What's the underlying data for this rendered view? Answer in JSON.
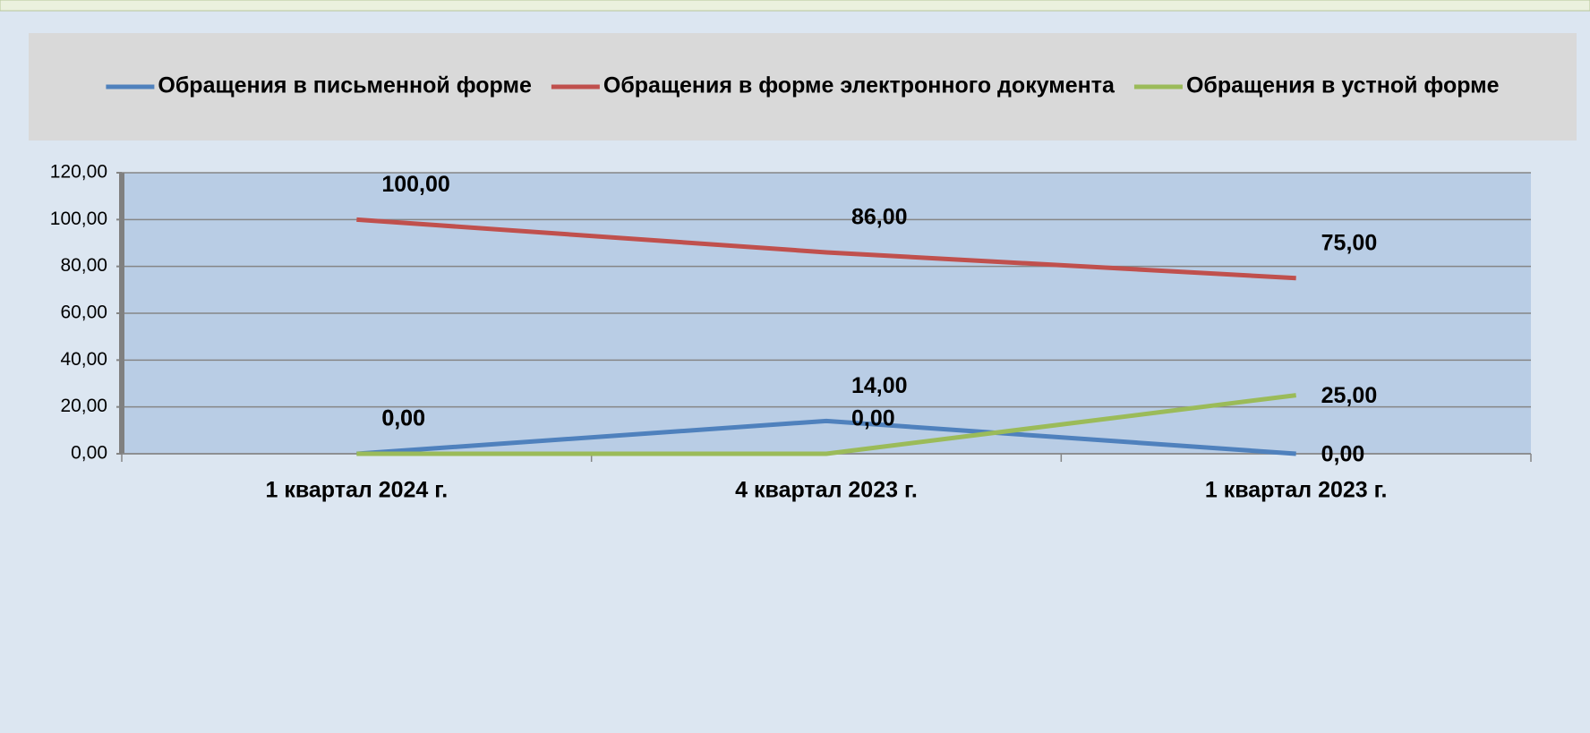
{
  "chart_data": {
    "type": "line",
    "categories": [
      "1 квартал 2024 г.",
      "4 квартал 2023 г.",
      "1 квартал 2023 г."
    ],
    "series": [
      {
        "name": "Обращения в письменной форме",
        "color": "#4f81bd",
        "values": [
          0,
          14,
          0
        ],
        "value_labels": [
          "0,00",
          "14,00",
          "0,00"
        ]
      },
      {
        "name": "Обращения в форме электронного документа",
        "color": "#c0504d",
        "values": [
          100,
          86,
          75
        ],
        "value_labels": [
          "100,00",
          "86,00",
          "75,00"
        ]
      },
      {
        "name": "Обращения в устной форме",
        "color": "#9bbb59",
        "values": [
          0,
          0,
          25
        ],
        "value_labels": [
          "0,00",
          "0,00",
          "25,00"
        ]
      }
    ],
    "ylim": [
      0,
      120
    ],
    "yticks": [
      {
        "value": 0,
        "label": "0,00"
      },
      {
        "value": 20,
        "label": "20,00"
      },
      {
        "value": 40,
        "label": "40,00"
      },
      {
        "value": 60,
        "label": "60,00"
      },
      {
        "value": 80,
        "label": "80,00"
      },
      {
        "value": 100,
        "label": "100,00"
      },
      {
        "value": 120,
        "label": "120,00"
      }
    ],
    "grid": true,
    "legend": "top"
  }
}
